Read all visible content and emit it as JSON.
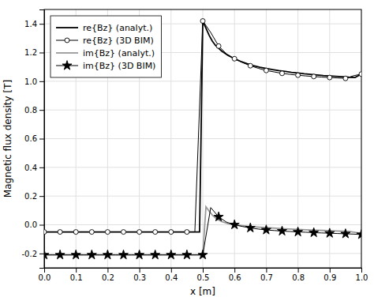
{
  "chart_data": {
    "type": "line",
    "xlabel": "x [m]",
    "ylabel": "Magnetic flux density [T]",
    "xlim": [
      0,
      1.0
    ],
    "ylim": [
      -0.3,
      1.5
    ],
    "xticks": [
      {
        "value": 0.0,
        "label": "0.0"
      },
      0.1,
      0.2,
      0.3,
      0.4,
      0.5,
      0.6,
      0.7,
      0.8,
      0.9,
      {
        "value": 1.0,
        "label": "1.0"
      }
    ],
    "yticks": [
      -0.2,
      {
        "value": 0.0,
        "label": "0.0"
      },
      0.2,
      0.4,
      0.6,
      0.8,
      {
        "value": 1.0,
        "label": "1.0"
      },
      1.2,
      1.4
    ],
    "grid": true,
    "legend": "upper left",
    "series": [
      {
        "name": "re{Bz} (analyt.)",
        "color": "#000000",
        "line_style": "solid",
        "x": [
          0.0,
          0.1,
          0.2,
          0.3,
          0.4,
          0.49,
          0.5,
          0.51,
          0.52,
          0.53,
          0.54,
          0.55,
          0.56,
          0.57,
          0.58,
          0.59,
          0.6,
          0.62,
          0.64,
          0.66,
          0.68,
          0.7,
          0.72,
          0.74,
          0.76,
          0.78,
          0.8,
          0.82,
          0.84,
          0.86,
          0.88,
          0.9,
          0.92,
          0.94,
          0.96,
          0.98,
          1.0
        ],
        "values": [
          -0.05,
          -0.05,
          -0.05,
          -0.05,
          -0.05,
          -0.05,
          1.42,
          1.37,
          1.32,
          1.28,
          1.25,
          1.23,
          1.21,
          1.195,
          1.18,
          1.168,
          1.157,
          1.138,
          1.122,
          1.109,
          1.098,
          1.089,
          1.081,
          1.074,
          1.068,
          1.062,
          1.057,
          1.052,
          1.048,
          1.044,
          1.04,
          1.037,
          1.034,
          1.031,
          1.028,
          1.026,
          1.05
        ]
      },
      {
        "name": "re{Bz} (3D BIM)",
        "color": "#000000",
        "line_style": "solid",
        "marker": "circle",
        "x": [
          0.0,
          0.025,
          0.05,
          0.075,
          0.1,
          0.125,
          0.15,
          0.175,
          0.2,
          0.225,
          0.25,
          0.275,
          0.3,
          0.325,
          0.35,
          0.375,
          0.4,
          0.425,
          0.45,
          0.475,
          0.5,
          0.525,
          0.55,
          0.575,
          0.6,
          0.625,
          0.65,
          0.675,
          0.7,
          0.725,
          0.75,
          0.775,
          0.8,
          0.825,
          0.85,
          0.875,
          0.9,
          0.925,
          0.95,
          0.975,
          1.0
        ],
        "values": [
          -0.05,
          -0.05,
          -0.05,
          -0.05,
          -0.05,
          -0.05,
          -0.05,
          -0.05,
          -0.05,
          -0.05,
          -0.05,
          -0.05,
          -0.05,
          -0.05,
          -0.05,
          -0.05,
          -0.05,
          -0.05,
          -0.05,
          -0.05,
          1.42,
          1.34,
          1.245,
          1.19,
          1.157,
          1.13,
          1.108,
          1.09,
          1.075,
          1.065,
          1.055,
          1.048,
          1.042,
          1.037,
          1.033,
          1.029,
          1.026,
          1.023,
          1.02,
          1.038,
          1.05
        ]
      },
      {
        "name": "im{Bz} (analyt.)",
        "color": "#999999",
        "line_style": "solid",
        "x": [
          0.0,
          0.1,
          0.2,
          0.3,
          0.4,
          0.49,
          0.5,
          0.51,
          0.52,
          0.53,
          0.54,
          0.55,
          0.56,
          0.58,
          0.6,
          0.64,
          0.68,
          0.72,
          0.76,
          0.8,
          0.84,
          0.88,
          0.92,
          0.96,
          1.0
        ],
        "values": [
          -0.21,
          -0.21,
          -0.21,
          -0.21,
          -0.21,
          -0.21,
          -0.21,
          0.125,
          0.095,
          0.068,
          0.048,
          0.033,
          0.022,
          0.008,
          0.0,
          -0.01,
          -0.017,
          -0.023,
          -0.028,
          -0.032,
          -0.036,
          -0.04,
          -0.043,
          -0.046,
          -0.06
        ]
      },
      {
        "name": "im{Bz} (3D BIM)",
        "color": "#000000",
        "line_style": "solid",
        "marker": "star",
        "x": [
          0.0,
          0.025,
          0.05,
          0.075,
          0.1,
          0.125,
          0.15,
          0.175,
          0.2,
          0.225,
          0.25,
          0.275,
          0.3,
          0.325,
          0.35,
          0.375,
          0.4,
          0.425,
          0.45,
          0.475,
          0.5,
          0.525,
          0.55,
          0.575,
          0.6,
          0.625,
          0.65,
          0.675,
          0.7,
          0.725,
          0.75,
          0.775,
          0.8,
          0.825,
          0.85,
          0.875,
          0.9,
          0.925,
          0.95,
          0.975,
          1.0
        ],
        "values": [
          -0.21,
          -0.21,
          -0.21,
          -0.21,
          -0.21,
          -0.21,
          -0.21,
          -0.21,
          -0.21,
          -0.21,
          -0.21,
          -0.21,
          -0.21,
          -0.21,
          -0.21,
          -0.21,
          -0.21,
          -0.21,
          -0.21,
          -0.21,
          -0.21,
          0.12,
          0.055,
          0.018,
          0.0,
          -0.012,
          -0.022,
          -0.03,
          -0.036,
          -0.04,
          -0.044,
          -0.047,
          -0.05,
          -0.052,
          -0.055,
          -0.057,
          -0.059,
          -0.061,
          -0.063,
          -0.065,
          -0.068
        ]
      }
    ]
  }
}
